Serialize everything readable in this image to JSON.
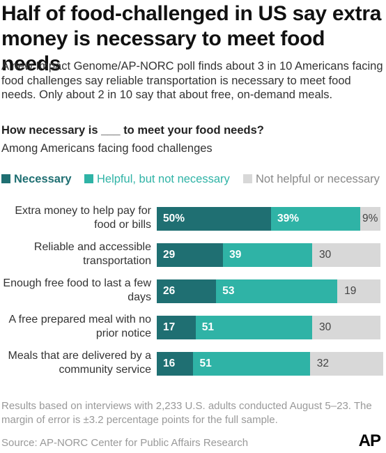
{
  "headline": "Half of food-challenged in US say extra money is necessary to meet food needs",
  "intro": "A new Impact Genome/AP-NORC poll finds about 3 in 10 Americans facing food challenges say reliable transportation is necessary to meet food needs. Only about 2 in 10 say that about free, on-demand meals.",
  "question": "How necessary is ___ to meet your food needs?",
  "subquestion": "Among Americans facing food challenges",
  "colors": {
    "necessary": "#1f6f72",
    "helpful": "#2fb3a6",
    "not_helpful": "#d8d8d8"
  },
  "legend": [
    "Necessary",
    "Helpful, but not necessary",
    "Not helpful or necessary"
  ],
  "chart_data": {
    "type": "bar",
    "orientation": "horizontal",
    "stacked": true,
    "categories": [
      "Extra money to help pay for food or bills",
      "Reliable and accessible transportation",
      "Enough free food to last a few days",
      "A free prepared meal with no prior notice",
      "Meals that are delivered by a community service"
    ],
    "series": [
      {
        "name": "Necessary",
        "values": [
          50,
          29,
          26,
          17,
          16
        ],
        "labels": [
          "50%",
          "29",
          "26",
          "17",
          "16"
        ]
      },
      {
        "name": "Helpful, but not necessary",
        "values": [
          39,
          39,
          53,
          51,
          51
        ],
        "labels": [
          "39%",
          "39",
          "53",
          "51",
          "51"
        ]
      },
      {
        "name": "Not helpful or necessary",
        "values": [
          9,
          30,
          19,
          30,
          32
        ],
        "labels": [
          "9%",
          "30",
          "19",
          "30",
          "32"
        ]
      }
    ],
    "xlim": [
      0,
      100
    ],
    "grid": false,
    "legend_position": "top"
  },
  "footnote": "Results based on interviews with 2,233 U.S. adults conducted August 5–23. The margin of error is ±3.2 percentage points for the full sample.",
  "source": "Source: AP-NORC Center for Public Affairs Research",
  "logo": "AP"
}
